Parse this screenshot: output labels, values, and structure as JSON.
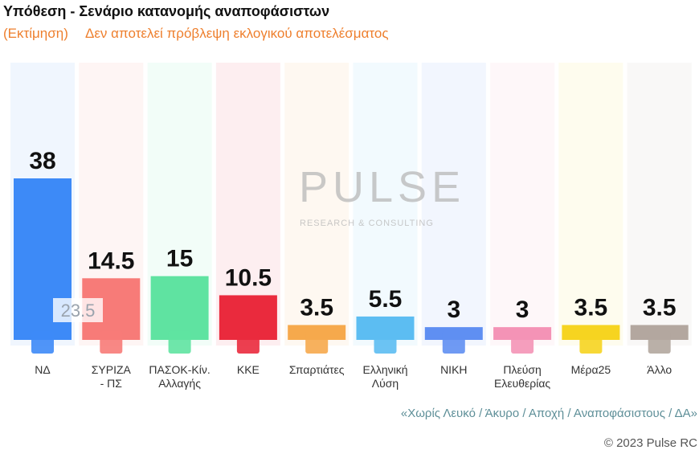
{
  "chart_data": {
    "type": "bar",
    "title": "Υπόθεση - Σενάριο κατανομής αναποφάσιστων",
    "subtitle_left": "(Εκτίμηση)",
    "subtitle": "Δεν αποτελεί πρόβλεψη εκλογικού αποτελέσματος",
    "categories": [
      "ΝΔ",
      "ΣΥΡΙΖΑ\n- ΠΣ",
      "ΠΑΣΟΚ-Κίν.\nΑλλαγής",
      "ΚΚΕ",
      "Σπαρτιάτες",
      "Ελληνική\nΛύση",
      "ΝΙΚΗ",
      "Πλεύση\nΕλευθερίας",
      "Μέρα25",
      "Άλλο"
    ],
    "values": [
      38,
      14.5,
      15,
      10.5,
      3.5,
      5.5,
      3,
      3,
      3.5,
      3.5
    ],
    "colors": [
      "#3d8af7",
      "#f77b78",
      "#5fe3a1",
      "#ea2a3d",
      "#f6a94c",
      "#5cbdf2",
      "#5f8ff2",
      "#f493b6",
      "#f6d420",
      "#b3a79f"
    ],
    "annotation": "23.5",
    "watermark": "PULSE",
    "watermark_sub": "RESEARCH & CONSULTING",
    "note": "«Χωρίς Λευκό / Άκυρο / Αποχή / Αναποφάσιστους / ΔΑ»",
    "credit": "© 2023 Pulse RC"
  }
}
